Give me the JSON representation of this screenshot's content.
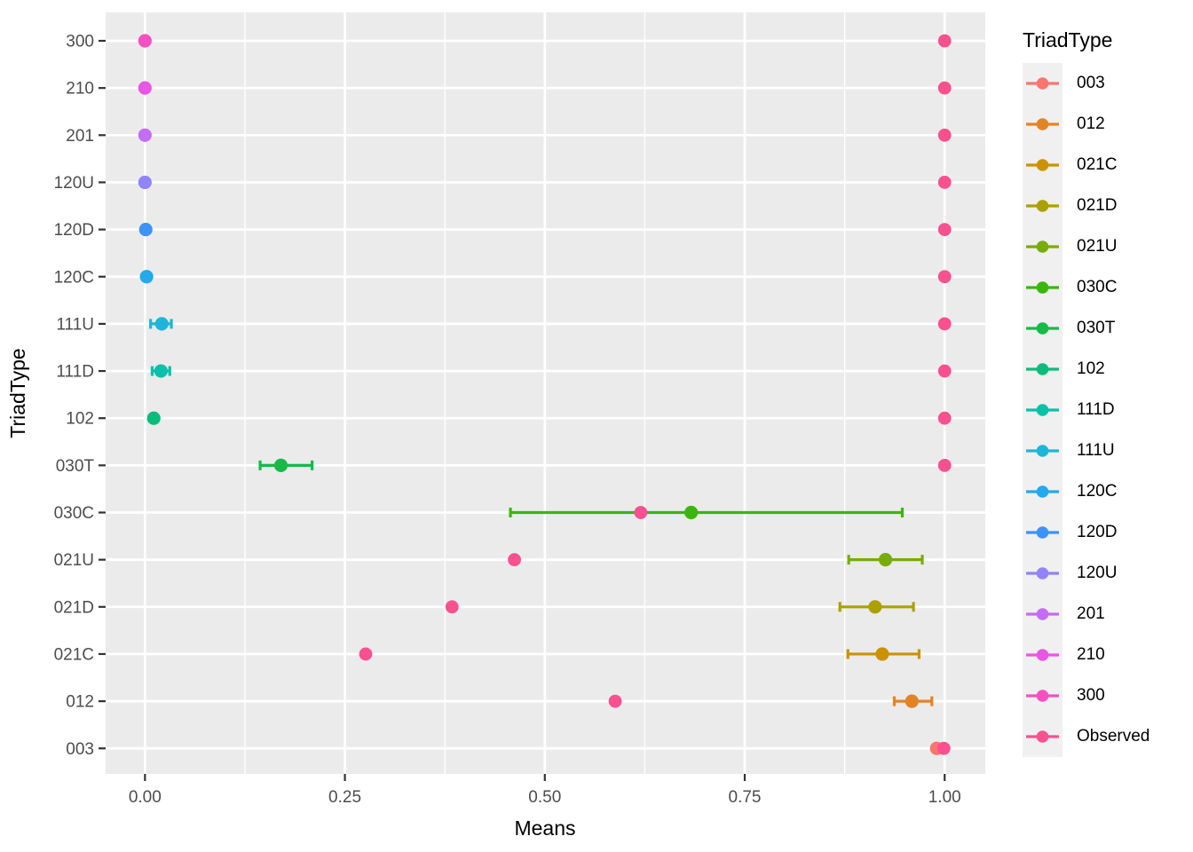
{
  "figure": {
    "background": "#ffffff",
    "panel_background": "#ebebeb",
    "grid_color": "#ffffff",
    "tick_mark_color": "#333333",
    "tick_label_color": "#4d4d4d",
    "axis_title_color": "#000000"
  },
  "axes": {
    "x_title": "Means",
    "y_title": "TriadType",
    "x_tick_labels": [
      "0.00",
      "0.25",
      "0.50",
      "0.75",
      "1.00"
    ],
    "x_tick_values": [
      0,
      0.25,
      0.5,
      0.75,
      1.0
    ],
    "x_minor_values": [
      0.125,
      0.375,
      0.625,
      0.875
    ],
    "y_tick_labels_top_to_bottom": [
      "300",
      "210",
      "201",
      "120U",
      "120D",
      "120C",
      "111U",
      "111D",
      "102",
      "030T",
      "030C",
      "021U",
      "021D",
      "021C",
      "012",
      "003"
    ]
  },
  "legend": {
    "title": "TriadType",
    "key_background": "#f0f0f0",
    "items": [
      {
        "label": "003",
        "color": "#F8766D"
      },
      {
        "label": "012",
        "color": "#E28425"
      },
      {
        "label": "021C",
        "color": "#CB9301"
      },
      {
        "label": "021D",
        "color": "#ABA102"
      },
      {
        "label": "021U",
        "color": "#78AC06"
      },
      {
        "label": "030C",
        "color": "#3CB60A"
      },
      {
        "label": "030T",
        "color": "#17BA48"
      },
      {
        "label": "102",
        "color": "#09BC7C"
      },
      {
        "label": "111D",
        "color": "#0BC0A8"
      },
      {
        "label": "111U",
        "color": "#1FB5D9"
      },
      {
        "label": "120C",
        "color": "#22A9EE"
      },
      {
        "label": "120D",
        "color": "#3D92F7"
      },
      {
        "label": "120U",
        "color": "#9183F8"
      },
      {
        "label": "201",
        "color": "#C46CF2"
      },
      {
        "label": "210",
        "color": "#E757E3"
      },
      {
        "label": "300",
        "color": "#F450C0"
      },
      {
        "label": "Observed",
        "color": "#F9508F"
      }
    ]
  },
  "chart_data": {
    "type": "scatter",
    "title": "",
    "xlabel": "Means",
    "ylabel": "TriadType",
    "xlim": [
      -0.0492,
      1.0508
    ],
    "x_ticks": [
      0,
      0.25,
      0.5,
      0.75,
      1.0
    ],
    "grid": true,
    "legend_position": "right",
    "categories_top_to_bottom": [
      "300",
      "210",
      "201",
      "120U",
      "120D",
      "120C",
      "111U",
      "111D",
      "102",
      "030T",
      "030C",
      "021U",
      "021D",
      "021C",
      "012",
      "003"
    ],
    "description": "Per TriadType: simulated mean with CI error bar (colored by TriadType) plus pink Observed point",
    "rows": [
      {
        "triad": "300",
        "mean": 0.0,
        "ci_low": null,
        "ci_high": null,
        "observed": 1.0
      },
      {
        "triad": "210",
        "mean": 0.0,
        "ci_low": null,
        "ci_high": null,
        "observed": 1.0
      },
      {
        "triad": "201",
        "mean": 0.0,
        "ci_low": null,
        "ci_high": null,
        "observed": 1.0
      },
      {
        "triad": "120U",
        "mean": 0.0,
        "ci_low": null,
        "ci_high": null,
        "observed": 1.0
      },
      {
        "triad": "120D",
        "mean": 0.001,
        "ci_low": null,
        "ci_high": null,
        "observed": 1.0
      },
      {
        "triad": "120C",
        "mean": 0.002,
        "ci_low": null,
        "ci_high": null,
        "observed": 1.0
      },
      {
        "triad": "111U",
        "mean": 0.021,
        "ci_low": 0.007,
        "ci_high": 0.033,
        "observed": 1.0
      },
      {
        "triad": "111D",
        "mean": 0.02,
        "ci_low": 0.009,
        "ci_high": 0.031,
        "observed": 1.0
      },
      {
        "triad": "102",
        "mean": 0.011,
        "ci_low": null,
        "ci_high": null,
        "observed": 1.0
      },
      {
        "triad": "030T",
        "mean": 0.17,
        "ci_low": 0.144,
        "ci_high": 0.209,
        "observed": 1.0
      },
      {
        "triad": "030C",
        "mean": 0.683,
        "ci_low": 0.457,
        "ci_high": 0.947,
        "observed": 0.62
      },
      {
        "triad": "021U",
        "mean": 0.926,
        "ci_low": 0.88,
        "ci_high": 0.972,
        "observed": 0.462
      },
      {
        "triad": "021D",
        "mean": 0.913,
        "ci_low": 0.869,
        "ci_high": 0.961,
        "observed": 0.384
      },
      {
        "triad": "021C",
        "mean": 0.922,
        "ci_low": 0.879,
        "ci_high": 0.968,
        "observed": 0.276
      },
      {
        "triad": "012",
        "mean": 0.959,
        "ci_low": 0.937,
        "ci_high": 0.984,
        "observed": 0.588
      },
      {
        "triad": "003",
        "mean": 0.99,
        "ci_low": null,
        "ci_high": null,
        "observed": 0.999
      }
    ]
  }
}
